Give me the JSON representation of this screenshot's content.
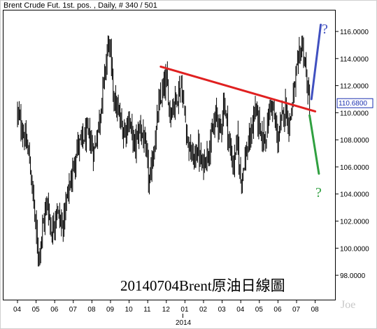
{
  "chart_data": {
    "type": "bar",
    "title": "Brent Crude Fut. 1st. pos. , Daily, # 340 / 501",
    "caption": "20140704Brent原油日線圖",
    "watermark": "Joe",
    "year_label": "2014",
    "x_month_labels": [
      "04",
      "05",
      "06",
      "07",
      "08",
      "09",
      "10",
      "11",
      "12",
      "01",
      "02",
      "03",
      "04",
      "05",
      "06",
      "07",
      "08"
    ],
    "x_year_label_index": 9,
    "ylim": [
      96.2,
      117.6
    ],
    "y_ticks": [
      98,
      100,
      102,
      104,
      106,
      108,
      110,
      112,
      114,
      116
    ],
    "y_tick_labels": [
      "98.0000",
      "100.0000",
      "102.0000",
      "104.0000",
      "106.0000",
      "108.0000",
      "110.0000",
      "112.0000",
      "114.0000",
      "116.0000"
    ],
    "last_price": 110.68,
    "last_price_label": "110.6800",
    "price_path_months": [
      0,
      0.3,
      0.6,
      0.9,
      1.0,
      1.15,
      1.35,
      1.6,
      1.85,
      2.1,
      2.4,
      2.7,
      2.95,
      3.2,
      3.5,
      3.8,
      4.1,
      4.4,
      4.7,
      4.9,
      5.0,
      5.2,
      5.4,
      5.7,
      6.0,
      6.3,
      6.6,
      6.8,
      7.0,
      7.1,
      7.2,
      7.4,
      7.6,
      7.8,
      8.0,
      8.2,
      8.5,
      8.8,
      9.1,
      9.3,
      9.5,
      9.7,
      9.9,
      10.2,
      10.5,
      10.7,
      10.9,
      11.1,
      11.4,
      11.6,
      11.8,
      12.0,
      12.2,
      12.5,
      12.8,
      13.1,
      13.4,
      13.6,
      13.8,
      14.0,
      14.2,
      14.4,
      14.6,
      14.8,
      15.0,
      15.3,
      15.5,
      15.6,
      15.7
    ],
    "price_path_values": [
      110.0,
      108.5,
      107.0,
      103.0,
      101.0,
      99.5,
      101.5,
      103.5,
      101.0,
      103.0,
      101.5,
      104.0,
      105.5,
      107.5,
      108.0,
      108.5,
      107.0,
      109.5,
      113.0,
      115.5,
      114.0,
      111.0,
      110.0,
      108.5,
      109.5,
      107.5,
      109.0,
      108.0,
      106.0,
      104.5,
      106.0,
      108.0,
      110.5,
      111.5,
      112.5,
      110.0,
      111.0,
      112.0,
      108.5,
      107.0,
      106.5,
      107.5,
      106.0,
      107.0,
      108.5,
      110.0,
      108.5,
      111.0,
      107.5,
      106.0,
      108.0,
      105.0,
      106.5,
      108.0,
      110.5,
      108.0,
      108.5,
      111.0,
      109.5,
      108.0,
      109.5,
      110.5,
      109.0,
      111.0,
      113.0,
      115.2,
      113.0,
      111.5,
      110.7
    ],
    "annotations": [
      {
        "name": "resistance-trendline",
        "color": "#e02020",
        "x": [
          7.7,
          16.0
        ],
        "y": [
          113.4,
          110.1
        ]
      },
      {
        "name": "bullish-projection-line",
        "color": "#4050c0",
        "x": [
          15.8,
          16.3
        ],
        "y": [
          111.0,
          116.5
        ]
      },
      {
        "name": "bearish-projection-line",
        "color": "#30a040",
        "x": [
          15.7,
          16.2
        ],
        "y": [
          109.8,
          105.5
        ]
      }
    ],
    "question_mark": "?",
    "bar_color": "#000000",
    "grid": false
  }
}
